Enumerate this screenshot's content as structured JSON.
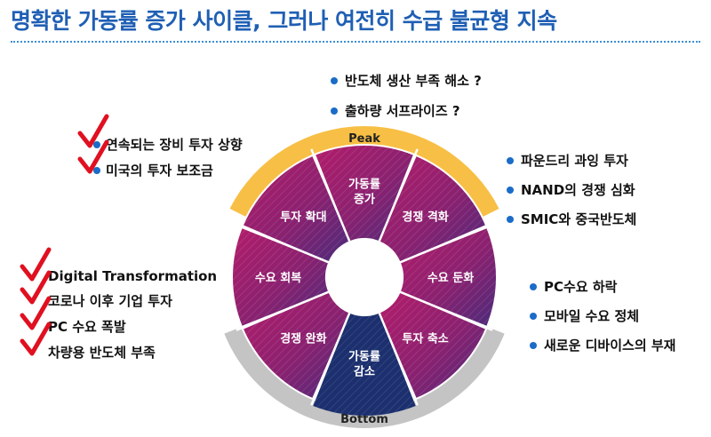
{
  "title": "명확한 가동률 증가 사이클, 그러나 여전히 수급 불균형 지속",
  "peak_label": "Peak",
  "bottom_label": "Bottom",
  "segments": [
    {
      "label": [
        "가동률",
        "증가"
      ]
    },
    {
      "label": [
        "경쟁 격화"
      ]
    },
    {
      "label": [
        "수요 둔화"
      ]
    },
    {
      "label": [
        "투자 축소"
      ]
    },
    {
      "label": [
        "가동률",
        "감소"
      ]
    },
    {
      "label": [
        "경쟁 완화"
      ]
    },
    {
      "label": [
        "수요 회복"
      ]
    },
    {
      "label": [
        "투자 확대"
      ]
    }
  ],
  "top_notes": [
    "반도체 생산 부족 해소 ?",
    "출하량 서프라이즈 ?"
  ],
  "left_top_notes": [
    "연속되는 장비 투자 상향",
    "미국의 투자 보조금"
  ],
  "left_bottom_notes": [
    "Digital Transformation",
    "코로나 이후 기업 투자",
    "PC 수요 폭발",
    "차량용 반도체 부족"
  ],
  "right_top_notes": [
    "파운드리 과잉 투자",
    "NAND의 경쟁 심화",
    "SMIC와 중국반도체"
  ],
  "right_bottom_notes": [
    "PC수요 하락",
    "모바일 수요 정체",
    "새로운 디바이스의 부재"
  ],
  "colors": {
    "title": "#1f5fb4",
    "bullet": "#1a6cc8",
    "check": "#e01020",
    "peak_arc": "#f7bf45",
    "bottom_arc": "#c4c4c4",
    "segment_gradient": [
      "#b21d6b",
      "#8a2170",
      "#4a2b7a"
    ],
    "trough_segment": "#1c2f6e"
  }
}
